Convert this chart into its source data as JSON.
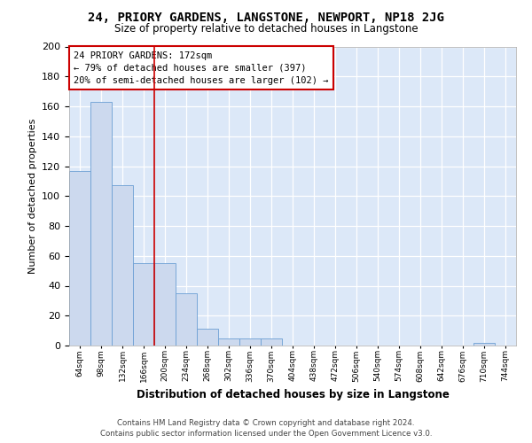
{
  "title1": "24, PRIORY GARDENS, LANGSTONE, NEWPORT, NP18 2JG",
  "title2": "Size of property relative to detached houses in Langstone",
  "xlabel": "Distribution of detached houses by size in Langstone",
  "ylabel": "Number of detached properties",
  "categories": [
    "64sqm",
    "98sqm",
    "132sqm",
    "166sqm",
    "200sqm",
    "234sqm",
    "268sqm",
    "302sqm",
    "336sqm",
    "370sqm",
    "404sqm",
    "438sqm",
    "472sqm",
    "506sqm",
    "540sqm",
    "574sqm",
    "608sqm",
    "642sqm",
    "676sqm",
    "710sqm",
    "744sqm"
  ],
  "values": [
    117,
    163,
    107,
    55,
    55,
    35,
    11,
    5,
    5,
    5,
    0,
    0,
    0,
    0,
    0,
    0,
    0,
    0,
    0,
    2,
    0
  ],
  "bar_color": "#ccd9ee",
  "bar_edge_color": "#6b9fd4",
  "background_color": "#dce8f8",
  "grid_color": "#ffffff",
  "red_line_x": 3.5,
  "annotation_line1": "24 PRIORY GARDENS: 172sqm",
  "annotation_line2": "← 79% of detached houses are smaller (397)",
  "annotation_line3": "20% of semi-detached houses are larger (102) →",
  "annotation_box_color": "#ffffff",
  "annotation_box_edge": "#cc0000",
  "ylim": [
    0,
    200
  ],
  "yticks": [
    0,
    20,
    40,
    60,
    80,
    100,
    120,
    140,
    160,
    180,
    200
  ],
  "footer1": "Contains HM Land Registry data © Crown copyright and database right 2024.",
  "footer2": "Contains public sector information licensed under the Open Government Licence v3.0."
}
